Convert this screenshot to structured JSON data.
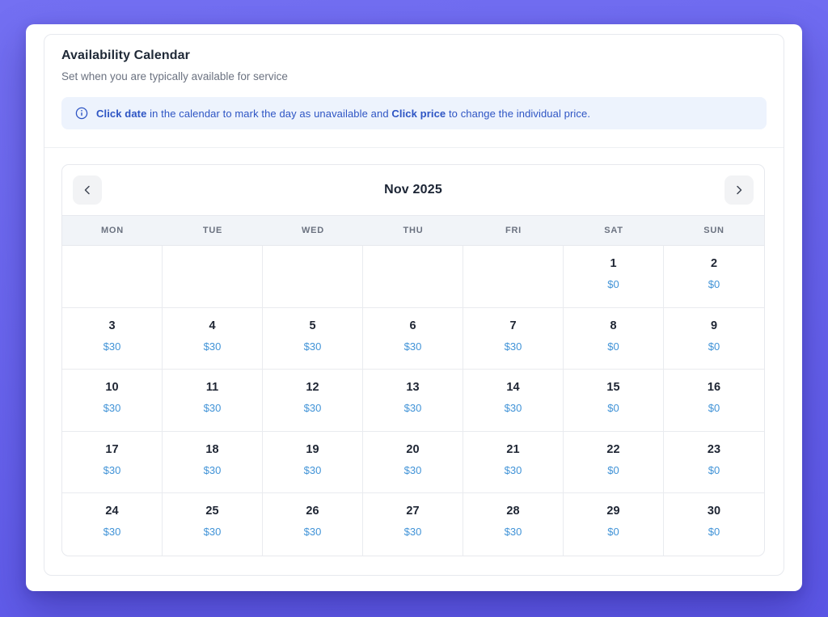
{
  "header": {
    "title": "Availability Calendar",
    "subtitle": "Set when you are typically available for service"
  },
  "banner": {
    "info_icon": "info-circle-icon",
    "bold_1": "Click date",
    "text_1": " in the calendar to mark the day as unavailable and ",
    "bold_2": "Click price",
    "text_2": " to change the individual price."
  },
  "calendar": {
    "month_label": "Nov 2025",
    "prev_icon": "chevron-left-icon",
    "next_icon": "chevron-right-icon",
    "weekdays": [
      "MON",
      "TUE",
      "WED",
      "THU",
      "FRI",
      "SAT",
      "SUN"
    ],
    "weeks": [
      [
        null,
        null,
        null,
        null,
        null,
        {
          "day": "1",
          "price": "$0"
        },
        {
          "day": "2",
          "price": "$0"
        }
      ],
      [
        {
          "day": "3",
          "price": "$30"
        },
        {
          "day": "4",
          "price": "$30"
        },
        {
          "day": "5",
          "price": "$30"
        },
        {
          "day": "6",
          "price": "$30"
        },
        {
          "day": "7",
          "price": "$30"
        },
        {
          "day": "8",
          "price": "$0"
        },
        {
          "day": "9",
          "price": "$0"
        }
      ],
      [
        {
          "day": "10",
          "price": "$30"
        },
        {
          "day": "11",
          "price": "$30"
        },
        {
          "day": "12",
          "price": "$30"
        },
        {
          "day": "13",
          "price": "$30"
        },
        {
          "day": "14",
          "price": "$30"
        },
        {
          "day": "15",
          "price": "$0"
        },
        {
          "day": "16",
          "price": "$0"
        }
      ],
      [
        {
          "day": "17",
          "price": "$30"
        },
        {
          "day": "18",
          "price": "$30"
        },
        {
          "day": "19",
          "price": "$30"
        },
        {
          "day": "20",
          "price": "$30"
        },
        {
          "day": "21",
          "price": "$30"
        },
        {
          "day": "22",
          "price": "$0"
        },
        {
          "day": "23",
          "price": "$0"
        }
      ],
      [
        {
          "day": "24",
          "price": "$30"
        },
        {
          "day": "25",
          "price": "$30"
        },
        {
          "day": "26",
          "price": "$30"
        },
        {
          "day": "27",
          "price": "$30"
        },
        {
          "day": "28",
          "price": "$30"
        },
        {
          "day": "29",
          "price": "$0"
        },
        {
          "day": "30",
          "price": "$0"
        }
      ]
    ]
  },
  "colors": {
    "background_purple": "#6a66ef",
    "banner_bg": "#edf3fd",
    "banner_text": "#2e55c4",
    "price_blue": "#4193d7",
    "day_text": "#1e2533",
    "weekday_bg": "#f1f4f8",
    "grid_border": "#e9ebef"
  }
}
